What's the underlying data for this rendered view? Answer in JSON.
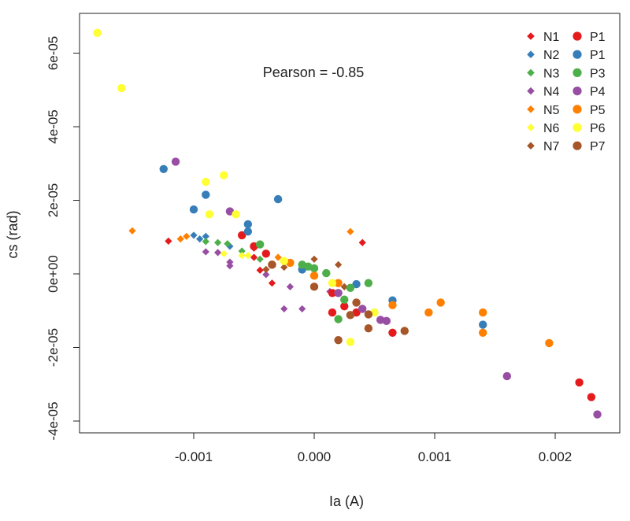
{
  "chart_data": {
    "type": "scatter",
    "title": "",
    "xlabel": "Ia (A)",
    "ylabel": "cs (rad)",
    "xlim": [
      -0.00195,
      0.00245
    ],
    "ylim": [
      -4e-05,
      7e-05
    ],
    "xticks": [
      -0.001,
      0.0,
      0.001,
      0.002
    ],
    "xtick_labels": [
      "-0.001",
      "0.000",
      "0.001",
      "0.002"
    ],
    "yticks": [
      -4e-05,
      -2e-05,
      0.0,
      2e-05,
      4e-05,
      6e-05
    ],
    "ytick_labels": [
      "-4e-05",
      "-2e-05",
      "0e+00",
      "2e-05",
      "4e-05",
      "6e-05"
    ],
    "grid": false,
    "annotation": "Pearson = -0.85",
    "legend_position": "top-right",
    "series": [
      {
        "name": "N1",
        "marker": "diamond",
        "color": "#e41a1c",
        "points": [
          [
            -0.00121,
            8.9e-06
          ],
          [
            -0.0005,
            7e-06
          ],
          [
            -0.0005,
            4.5e-06
          ],
          [
            -0.00045,
            1e-06
          ],
          [
            -0.00035,
            -2.5e-06
          ],
          [
            0.0004,
            8.5e-06
          ]
        ]
      },
      {
        "name": "N2",
        "marker": "diamond",
        "color": "#377eb8",
        "points": [
          [
            -0.001,
            1.05e-05
          ],
          [
            -0.00095,
            9.5e-06
          ],
          [
            -0.0009,
            1.02e-05
          ],
          [
            -0.0007,
            7.5e-06
          ]
        ]
      },
      {
        "name": "N3",
        "marker": "diamond",
        "color": "#4daf4a",
        "points": [
          [
            -0.0009,
            8.8e-06
          ],
          [
            -0.0008,
            8.5e-06
          ],
          [
            -0.00072,
            8.2e-06
          ],
          [
            -0.0006,
            6.2e-06
          ],
          [
            -0.00045,
            4e-06
          ]
        ]
      },
      {
        "name": "N4",
        "marker": "diamond",
        "color": "#984ea3",
        "points": [
          [
            -0.0009,
            6e-06
          ],
          [
            -0.0008,
            5.8e-06
          ],
          [
            -0.0007,
            3.2e-06
          ],
          [
            -0.0007,
            2.2e-06
          ],
          [
            -0.0004,
            -2e-07
          ],
          [
            -0.0002,
            -3.5e-06
          ],
          [
            -0.00025,
            -9.5e-06
          ],
          [
            -0.0001,
            -9.5e-06
          ],
          [
            0.00013,
            -4.8e-06
          ]
        ]
      },
      {
        "name": "N5",
        "marker": "diamond",
        "color": "#ff7f00",
        "points": [
          [
            -0.00151,
            1.17e-05
          ],
          [
            -0.00111,
            9.5e-06
          ],
          [
            -0.00106,
            1.02e-05
          ],
          [
            -0.0003,
            4.5e-06
          ],
          [
            0.0003,
            1.15e-05
          ]
        ]
      },
      {
        "name": "N6",
        "marker": "diamond",
        "color": "#ffff33",
        "points": [
          [
            -0.00075,
            5.5e-06
          ],
          [
            -0.0006,
            5e-06
          ],
          [
            -0.00055,
            5e-06
          ]
        ]
      },
      {
        "name": "N7",
        "marker": "diamond",
        "color": "#a65628",
        "points": [
          [
            -0.0004,
            1.2e-06
          ],
          [
            -0.00025,
            1.8e-06
          ],
          [
            0.0,
            4e-06
          ],
          [
            0.0002,
            2.5e-06
          ],
          [
            0.00025,
            -3.5e-06
          ]
        ]
      },
      {
        "name": "P1",
        "marker": "circle",
        "color": "#e41a1c",
        "points": [
          [
            -0.0006,
            1.05e-05
          ],
          [
            -0.0005,
            7.5e-06
          ],
          [
            -0.0004,
            5.5e-06
          ],
          [
            -0.00035,
            2.5e-06
          ],
          [
            0.00015,
            -5.2e-06
          ],
          [
            0.00015,
            -1.05e-05
          ],
          [
            0.00025,
            -8.8e-06
          ],
          [
            0.00035,
            -1.05e-05
          ],
          [
            0.00065,
            -1.6e-05
          ],
          [
            0.0022,
            -2.95e-05
          ],
          [
            0.0023,
            -3.35e-05
          ]
        ]
      },
      {
        "name": "P1",
        "marker": "circle",
        "color": "#377eb8",
        "points": [
          [
            -0.00125,
            2.85e-05
          ],
          [
            -0.001,
            1.75e-05
          ],
          [
            -0.0009,
            2.15e-05
          ],
          [
            -0.00055,
            1.35e-05
          ],
          [
            -0.00055,
            1.15e-05
          ],
          [
            -0.0003,
            2.03e-05
          ],
          [
            0.00035,
            -2.8e-06
          ],
          [
            0.00065,
            -7.2e-06
          ],
          [
            0.0014,
            -1.38e-05
          ],
          [
            -0.0001,
            1.2e-06
          ]
        ]
      },
      {
        "name": "P3",
        "marker": "circle",
        "color": "#4daf4a",
        "points": [
          [
            -0.00045,
            8e-06
          ],
          [
            -0.0001,
            2.5e-06
          ],
          [
            -5e-05,
            2e-06
          ],
          [
            0.0,
            1.5e-06
          ],
          [
            0.0001,
            2e-07
          ],
          [
            0.00025,
            -7e-06
          ],
          [
            0.0003,
            -3.8e-06
          ],
          [
            0.00045,
            -2.5e-06
          ],
          [
            0.0002,
            -1.23e-05
          ]
        ]
      },
      {
        "name": "P4",
        "marker": "circle",
        "color": "#984ea3",
        "points": [
          [
            -0.00115,
            3.05e-05
          ],
          [
            -0.0007,
            1.7e-05
          ],
          [
            0.0002,
            -5.2e-06
          ],
          [
            0.0004,
            -9.5e-06
          ],
          [
            0.00055,
            -1.25e-05
          ],
          [
            0.0006,
            -1.28e-05
          ],
          [
            0.0016,
            -2.78e-05
          ],
          [
            0.00235,
            -3.82e-05
          ]
        ]
      },
      {
        "name": "P5",
        "marker": "circle",
        "color": "#ff7f00",
        "points": [
          [
            -0.0002,
            3e-06
          ],
          [
            0.0,
            -5e-07
          ],
          [
            0.0002,
            -2.5e-06
          ],
          [
            0.00065,
            -8.5e-06
          ],
          [
            0.00095,
            -1.05e-05
          ],
          [
            0.00105,
            -7.8e-06
          ],
          [
            0.0014,
            -1.05e-05
          ],
          [
            0.0014,
            -1.6e-05
          ],
          [
            0.00195,
            -1.88e-05
          ]
        ]
      },
      {
        "name": "P6",
        "marker": "circle",
        "color": "#ffff33",
        "points": [
          [
            -0.0018,
            6.55e-05
          ],
          [
            -0.0016,
            5.05e-05
          ],
          [
            -0.0009,
            2.5e-05
          ],
          [
            -0.00075,
            2.68e-05
          ],
          [
            -0.00087,
            1.62e-05
          ],
          [
            -0.00065,
            1.62e-05
          ],
          [
            -0.00025,
            3.5e-06
          ],
          [
            0.00015,
            -2.5e-06
          ],
          [
            0.0005,
            -1.05e-05
          ],
          [
            0.0003,
            -1.85e-05
          ]
        ]
      },
      {
        "name": "P7",
        "marker": "circle",
        "color": "#a65628",
        "points": [
          [
            -0.00035,
            2.5e-06
          ],
          [
            0.0,
            -3.5e-06
          ],
          [
            0.00035,
            -7.8e-06
          ],
          [
            0.00045,
            -1.1e-05
          ],
          [
            0.00045,
            -1.48e-05
          ],
          [
            0.0003,
            -1.12e-05
          ],
          [
            0.00075,
            -1.55e-05
          ],
          [
            0.0002,
            -1.8e-05
          ]
        ]
      }
    ]
  }
}
